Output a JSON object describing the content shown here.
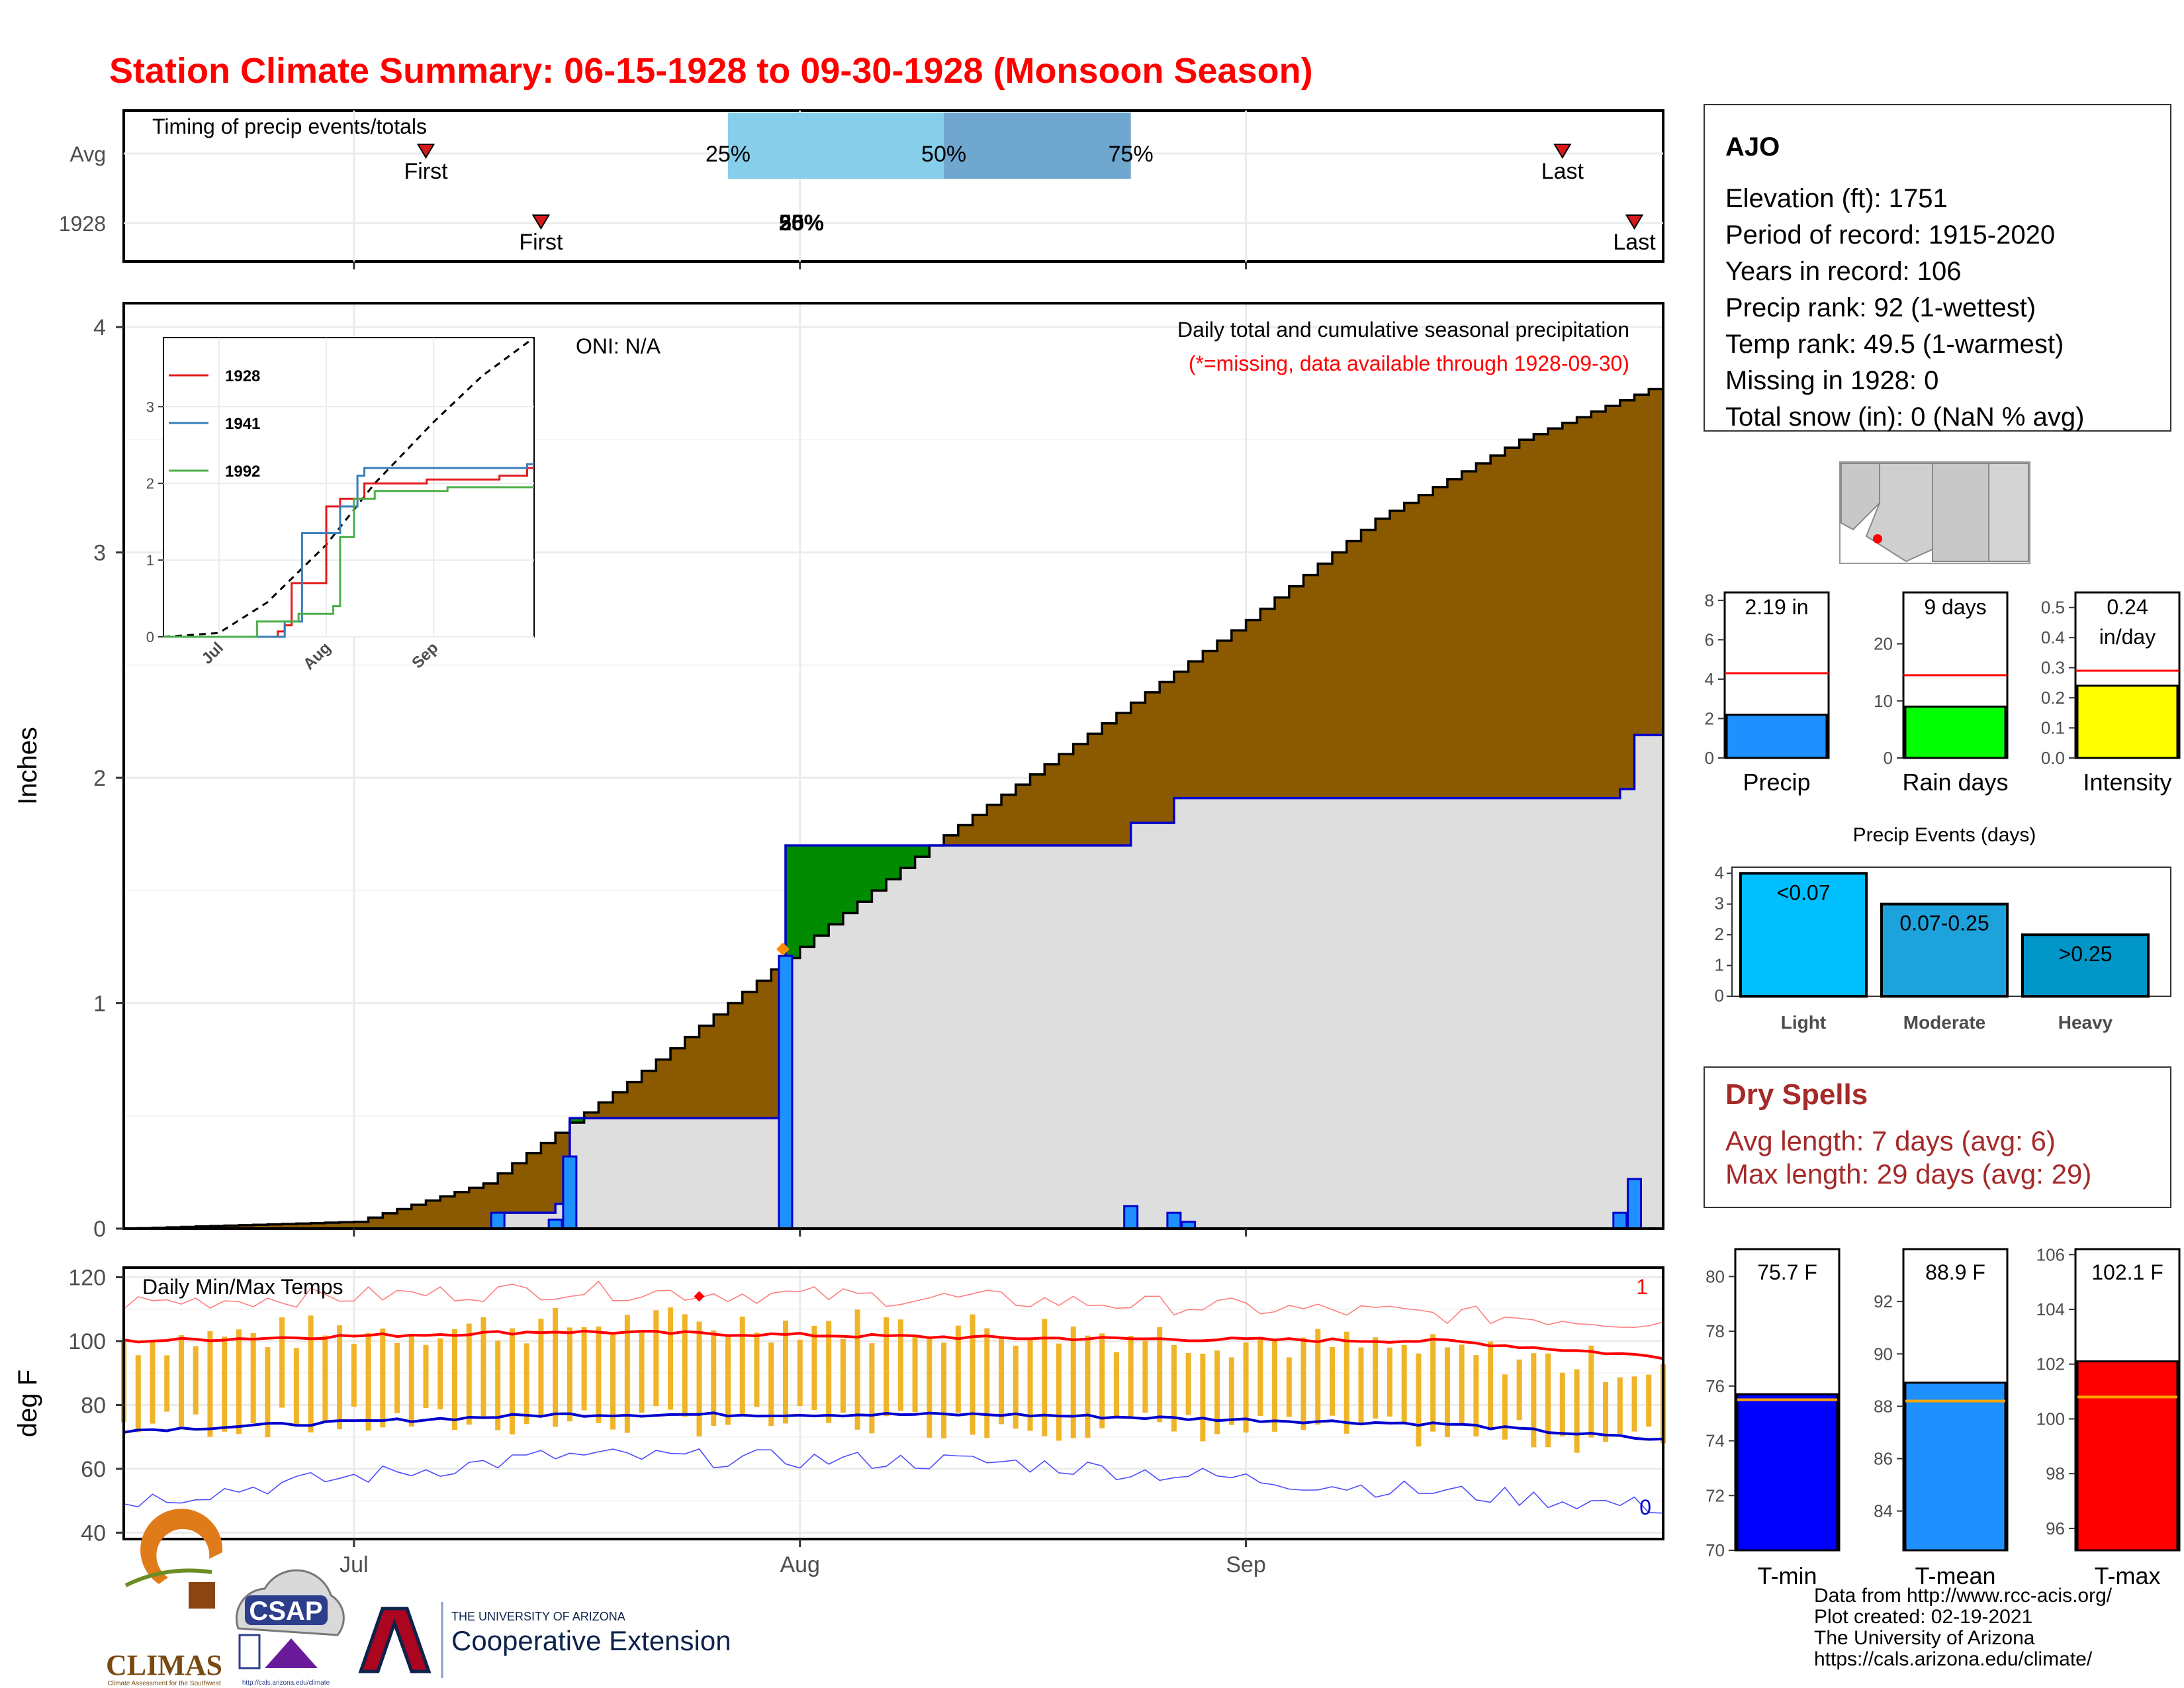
{
  "page": {
    "title": "Station Climate Summary: 06-15-1928 to 09-30-1928 (Monsoon Season)",
    "title_color": "#ff0000"
  },
  "timing": {
    "label": "Timing of precip events/totals",
    "rows": [
      "Avg",
      "1928"
    ],
    "avg_markers": {
      "first": "First",
      "last": "Last",
      "first_day": 6,
      "last_day": 23
    },
    "avg_pct": [
      "25%",
      "50%",
      "75%"
    ],
    "y1928_markers": {
      "first": "First",
      "last": "Last"
    },
    "y1928_pct_overlap": [
      "25%",
      "50%"
    ]
  },
  "station": {
    "name": "AJO",
    "lines": [
      "Elevation (ft): 1751",
      "Period of record: 1915-2020",
      "Years in record: 106",
      "Precip rank: 92 (1-wettest)",
      "Temp rank: 49.5 (1-warmest)",
      "Missing in 1928: 0",
      "Total snow (in): 0 (NaN % avg)"
    ]
  },
  "precip_main": {
    "title": "Daily total and cumulative seasonal precipitation",
    "note": "(*=missing, data available through 1928-09-30)",
    "oni": "ONI: N/A",
    "ylabel": "Inches",
    "yticks": [
      "0",
      "1",
      "2",
      "3",
      "4"
    ],
    "months": [
      "Jul",
      "Aug",
      "Sep"
    ]
  },
  "inset": {
    "legend": [
      "1928",
      "1941",
      "1992"
    ],
    "legend_colors": [
      "#e41a1c",
      "#377eb8",
      "#4daf4a"
    ],
    "yticks": [
      "0",
      "1",
      "2",
      "3"
    ],
    "months": [
      "Jul",
      "Aug",
      "Sep"
    ]
  },
  "temps": {
    "label": "Daily Min/Max Temps",
    "ylabel": "deg F",
    "yticks": [
      "40",
      "60",
      "80",
      "100",
      "120"
    ],
    "max_record_count": "1",
    "min_record_count": "0"
  },
  "summary_bars": [
    {
      "label": "Precip",
      "value_text": "2.19 in",
      "value": 2.19,
      "avg": 4.3,
      "ymax": 8.4,
      "ticks": [
        "0",
        "2",
        "4",
        "6",
        "8"
      ],
      "color": "#1e90ff"
    },
    {
      "label": "Rain days",
      "value_text": "9 days",
      "value": 9,
      "avg": 14.5,
      "ymax": 29,
      "ticks": [
        "0",
        "10",
        "20"
      ],
      "color": "#00ff00"
    },
    {
      "label": "Intensity",
      "value_text": "0.24\nin/day",
      "value": 0.24,
      "avg": 0.29,
      "ymax": 0.55,
      "ticks": [
        "0.0",
        "0.1",
        "0.2",
        "0.3",
        "0.4",
        "0.5"
      ],
      "color": "#ffff00"
    }
  ],
  "events": {
    "title": "Precip Events (days)",
    "categories": [
      "Light",
      "Moderate",
      "Heavy"
    ],
    "labels": [
      "<0.07",
      "0.07-0.25",
      ">0.25"
    ],
    "values": [
      4,
      3,
      2
    ],
    "yticks": [
      "0",
      "1",
      "2",
      "3",
      "4"
    ],
    "colors": [
      "#00bfff",
      "#1ea2dc",
      "#0096c8"
    ]
  },
  "dry_spells": {
    "title": "Dry Spells",
    "lines": [
      "Avg length: 7 days (avg: 6)",
      "Max length: 29 days (avg: 29)"
    ],
    "color": "#a52a2a"
  },
  "temp_bars": [
    {
      "label": "T-min",
      "value_text": "75.7 F",
      "value": 75.7,
      "avg": 75.5,
      "ymin": 70,
      "ymax": 81,
      "ticks": [
        "70",
        "72",
        "74",
        "76",
        "78",
        "80"
      ],
      "color": "#0000ff"
    },
    {
      "label": "T-mean",
      "value_text": "88.9 F",
      "value": 88.9,
      "avg": 88.2,
      "ymin": 82.5,
      "ymax": 94,
      "ticks": [
        "84",
        "86",
        "88",
        "90",
        "92"
      ],
      "color": "#1e90ff"
    },
    {
      "label": "T-max",
      "value_text": "102.1 F",
      "value": 102.1,
      "avg": 100.8,
      "ymin": 95.2,
      "ymax": 106.2,
      "ticks": [
        "96",
        "98",
        "100",
        "102",
        "104",
        "106"
      ],
      "color": "#ff0000"
    }
  ],
  "footer": {
    "credits": [
      "Data from http://www.rcc-acis.org/",
      "Plot created: 02-19-2021",
      "The University of Arizona",
      "https://cals.arizona.edu/climate/"
    ],
    "logo_climas": "CLIMAS",
    "logo_climas_sub": "Climate Assessment for the Southwest",
    "logo_csap": "CSAP",
    "logo_csap_url": "http://cals.arizona.edu/climate",
    "ua_small": "THE UNIVERSITY OF ARIZONA",
    "ua_big": "Cooperative Extension",
    "ua_letter": "A"
  },
  "chart_data": [
    {
      "type": "area",
      "title": "Daily total and cumulative seasonal precipitation",
      "ylabel": "Inches",
      "ylim": [
        0,
        4.1
      ],
      "x_range": [
        "1928-06-15",
        "1928-09-30"
      ],
      "series": [
        {
          "name": "1928",
          "values_note": "cumulative",
          "x": [
            "1928-06-15",
            "1928-07-11",
            "1928-07-15",
            "1928-07-16",
            "1928-07-31",
            "1928-08-24",
            "1928-08-27",
            "1928-09-27",
            "1928-09-28"
          ],
          "values": [
            0,
            0.07,
            0.11,
            0.49,
            1.7,
            1.8,
            1.91,
            1.95,
            2.19
          ]
        },
        {
          "name": "Avg",
          "x": [
            "1928-06-15",
            "1928-07-01",
            "1928-07-10",
            "1928-07-20",
            "1928-07-31",
            "1928-08-10",
            "1928-08-20",
            "1928-09-01",
            "1928-09-10",
            "1928-09-20",
            "1928-09-30"
          ],
          "values": [
            0,
            0.03,
            0.2,
            0.65,
            1.2,
            1.7,
            2.15,
            2.7,
            3.15,
            3.5,
            3.75
          ]
        }
      ]
    },
    {
      "type": "line",
      "title": "Daily Min/Max Temps",
      "ylabel": "deg F",
      "ylim": [
        38,
        123
      ],
      "series": [
        {
          "name": "Avg max",
          "x": [
            "1928-06-15",
            "1928-07-15",
            "1928-08-15",
            "1928-09-15",
            "1928-09-30"
          ],
          "values": [
            100,
            103,
            101,
            100,
            95
          ]
        },
        {
          "name": "Avg min",
          "x": [
            "1928-06-15",
            "1928-07-15",
            "1928-08-15",
            "1928-09-15",
            "1928-09-30"
          ],
          "values": [
            72,
            77,
            77,
            74,
            69
          ]
        },
        {
          "name": "Record max",
          "x": [
            "1928-06-15",
            "1928-07-15",
            "1928-08-15",
            "1928-09-30"
          ],
          "values": [
            112,
            116,
            113,
            106
          ]
        },
        {
          "name": "Record min",
          "x": [
            "1928-06-15",
            "1928-07-15",
            "1928-08-15",
            "1928-09-30"
          ],
          "values": [
            50,
            64,
            62,
            48
          ]
        }
      ]
    },
    {
      "type": "bar",
      "title": "Precip Events (days)",
      "categories": [
        "Light",
        "Moderate",
        "Heavy"
      ],
      "values": [
        4,
        3,
        2
      ]
    }
  ]
}
